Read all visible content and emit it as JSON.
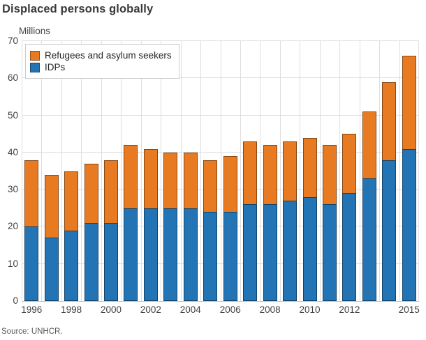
{
  "title": "Displaced persons globally",
  "unit_label": "Millions",
  "source": "Source: UNHCR.",
  "legend": {
    "items": [
      {
        "label": "Refugees and asylum seekers",
        "color": "#e87b22"
      },
      {
        "label": "IDPs",
        "color": "#2274b5"
      }
    ]
  },
  "colors": {
    "refugees": "#e87b22",
    "idps": "#2274b5",
    "grid": "#dedede",
    "axis": "#b9b9b9"
  },
  "chart_data": {
    "type": "bar",
    "stacked": true,
    "title": "Displaced persons globally",
    "ylabel": "Millions",
    "xlabel": "",
    "grid": true,
    "legend_position": "top-left-inside",
    "ylim": [
      0,
      70
    ],
    "yticks": [
      0,
      10,
      20,
      30,
      40,
      50,
      60,
      70
    ],
    "categories": [
      "1996",
      "1997",
      "1998",
      "1999",
      "2000",
      "2001",
      "2002",
      "2003",
      "2004",
      "2005",
      "2006",
      "2007",
      "2008",
      "2009",
      "2010",
      "2011",
      "2012",
      "2013",
      "2014",
      "2015"
    ],
    "xtick_labels": [
      "1996",
      "1998",
      "2000",
      "2002",
      "2004",
      "2006",
      "2008",
      "2010",
      "2012",
      "2015"
    ],
    "xtick_slots": [
      0,
      2,
      4,
      6,
      8,
      10,
      12,
      14,
      16,
      19
    ],
    "series": [
      {
        "name": "IDPs",
        "color": "#2274b5",
        "values": [
          20,
          17,
          19,
          21,
          21,
          25,
          25,
          25,
          25,
          24,
          24,
          26,
          26,
          27,
          28,
          26,
          29,
          33,
          38,
          41
        ]
      },
      {
        "name": "Refugees and asylum seekers",
        "color": "#e87b22",
        "values": [
          18,
          17,
          16,
          16,
          17,
          17,
          16,
          15,
          15,
          14,
          15,
          17,
          16,
          16,
          16,
          16,
          16,
          18,
          21,
          25
        ]
      }
    ],
    "totals": [
      38,
      34,
      35,
      37,
      38,
      42,
      41,
      40,
      40,
      38,
      39,
      43,
      42,
      43,
      44,
      42,
      45,
      51,
      59,
      66
    ]
  }
}
